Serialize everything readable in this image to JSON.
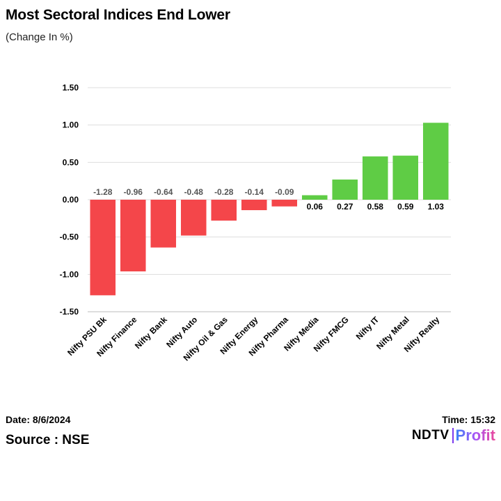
{
  "header": {
    "title": "Most Sectoral Indices End Lower",
    "subtitle": "(Change In %)"
  },
  "chart_data": {
    "type": "bar",
    "title": "Most Sectoral Indices End Lower",
    "subtitle": "(Change In %)",
    "xlabel": "",
    "ylabel": "",
    "ylim": [
      -1.5,
      1.5
    ],
    "yticks": [
      1.5,
      1.0,
      0.5,
      0.0,
      -0.5,
      -1.0,
      -1.5
    ],
    "ytick_labels": [
      "1.50",
      "1.00",
      "0.50",
      "0.00",
      "-0.50",
      "-1.00",
      "-1.50"
    ],
    "grid": true,
    "categories": [
      "Nifty PSU Bk",
      "Nifty Finance",
      "Nifty Bank",
      "Nifty Auto",
      "Nifty Oil & Gas",
      "Nifty Energy",
      "Nifty Pharma",
      "Nifty Media",
      "Nifty FMCG",
      "Nifty IT",
      "Nifty Metal",
      "Nifty Realty"
    ],
    "values": [
      -1.28,
      -0.96,
      -0.64,
      -0.48,
      -0.28,
      -0.14,
      -0.09,
      0.06,
      0.27,
      0.58,
      0.59,
      1.03
    ],
    "value_labels": [
      "-1.28",
      "-0.96",
      "-0.64",
      "-0.48",
      "-0.28",
      "-0.14",
      "-0.09",
      "0.06",
      "0.27",
      "0.58",
      "0.59",
      "1.03"
    ],
    "colors": {
      "negative": "#f4464a",
      "positive": "#5fcc45",
      "grid": "#dddddd",
      "axis": "#bbbbbb",
      "negative_label": "#555555",
      "positive_label": "#000000"
    }
  },
  "footer": {
    "date": "Date: 8/6/2024",
    "source": "Source : NSE",
    "time": "Time: 15:32",
    "logo_left": "NDTV",
    "logo_right": "Profit"
  }
}
